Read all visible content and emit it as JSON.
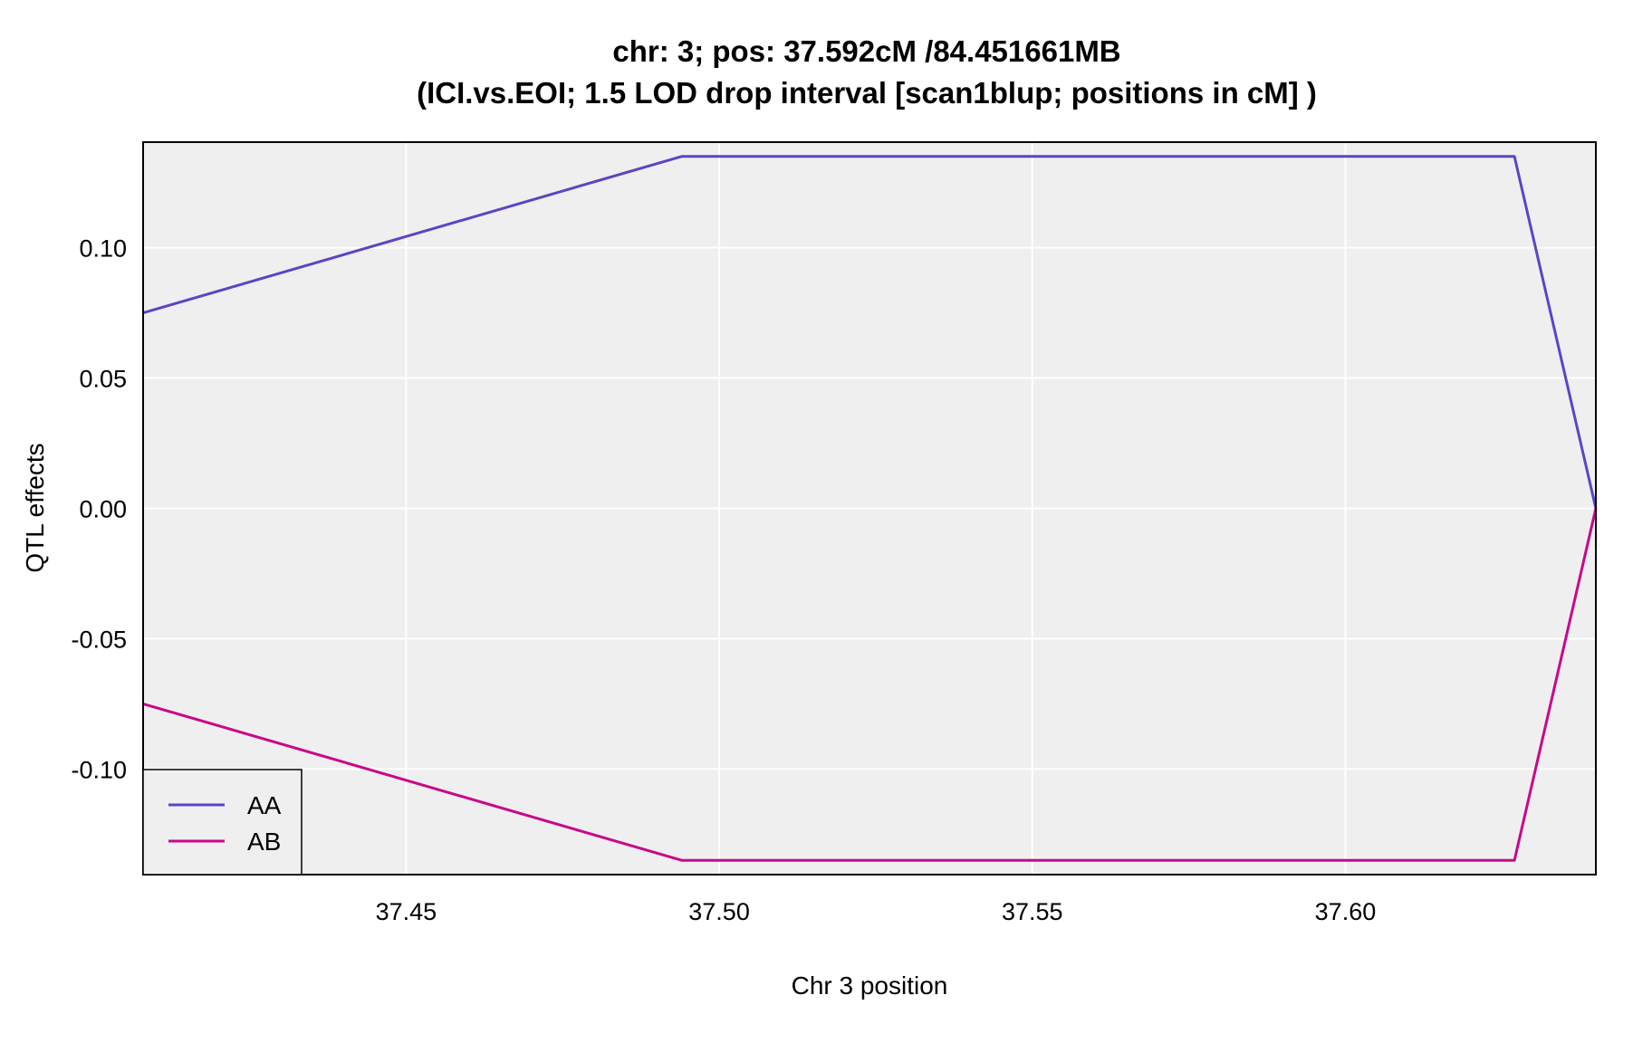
{
  "chart_data": {
    "type": "line",
    "title_line1": "chr: 3; pos: 37.592cM /84.451661MB",
    "title_line2": "(ICI.vs.EOI; 1.5 LOD drop interval [scan1blup; positions in cM] )",
    "xlabel": "Chr 3 position",
    "ylabel": "QTL effects",
    "xlim": [
      37.408,
      37.64
    ],
    "ylim": [
      -0.1405,
      0.1405
    ],
    "xticks": [
      37.45,
      37.5,
      37.55,
      37.6
    ],
    "xtick_labels": [
      "37.45",
      "37.50",
      "37.55",
      "37.60"
    ],
    "yticks": [
      0.1,
      0.05,
      0.0,
      -0.05,
      -0.1
    ],
    "ytick_labels": [
      "0.10",
      "0.05",
      "0.00",
      "-0.05",
      "-0.10"
    ],
    "grid": true,
    "legend_position": "bottom-left",
    "series": [
      {
        "name": "AA",
        "color": "#5a45c8",
        "x": [
          37.408,
          37.494,
          37.627,
          37.64
        ],
        "y": [
          0.075,
          0.135,
          0.135,
          0.0
        ]
      },
      {
        "name": "AB",
        "color": "#c8088a",
        "x": [
          37.408,
          37.494,
          37.627,
          37.64
        ],
        "y": [
          -0.075,
          -0.135,
          -0.135,
          0.0
        ]
      }
    ]
  }
}
